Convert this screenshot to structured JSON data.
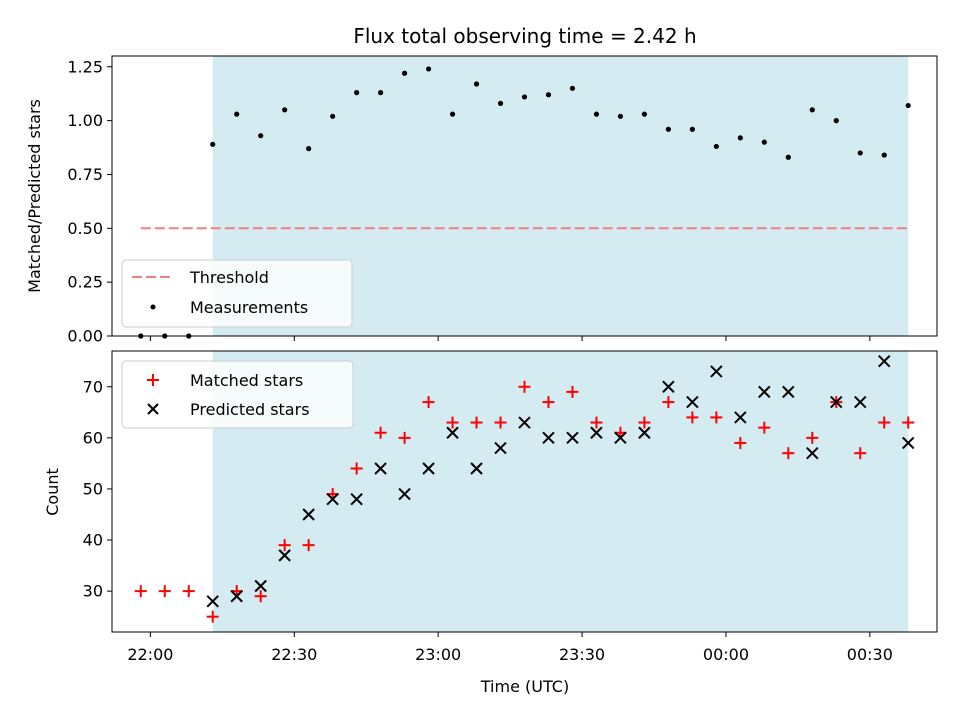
{
  "chart_data": [
    {
      "type": "scatter",
      "title": "Flux total observing time = 2.42 h",
      "ylabel": "Matched/Predicted stars",
      "xlim": [
        "21:52",
        "00:44"
      ],
      "ylim": [
        0,
        1.3
      ],
      "yticks": [
        "0.00",
        "0.25",
        "0.50",
        "0.75",
        "1.00",
        "1.25"
      ],
      "xticks": [
        "22:00",
        "22:30",
        "23:00",
        "23:30",
        "00:00",
        "00:30"
      ],
      "shaded_span": [
        "22:13",
        "00:38"
      ],
      "shaded_color": "#d3ebf1",
      "threshold": {
        "name": "Threshold",
        "value": 0.5,
        "x_start": "21:58",
        "x_end": "00:38",
        "color": "#f08080"
      },
      "legend": {
        "placement": "lower-left",
        "entries": [
          "Threshold",
          "Measurements"
        ]
      },
      "series": [
        {
          "name": "Measurements",
          "marker": "dot",
          "color": "#000000",
          "points": [
            [
              "21:58",
              0.0
            ],
            [
              "22:03",
              0.0
            ],
            [
              "22:08",
              0.0
            ],
            [
              "22:13",
              0.89
            ],
            [
              "22:18",
              1.03
            ],
            [
              "22:23",
              0.93
            ],
            [
              "22:28",
              1.05
            ],
            [
              "22:33",
              0.87
            ],
            [
              "22:38",
              1.02
            ],
            [
              "22:43",
              1.13
            ],
            [
              "22:48",
              1.13
            ],
            [
              "22:53",
              1.22
            ],
            [
              "22:58",
              1.24
            ],
            [
              "23:03",
              1.03
            ],
            [
              "23:08",
              1.17
            ],
            [
              "23:13",
              1.08
            ],
            [
              "23:18",
              1.11
            ],
            [
              "23:23",
              1.12
            ],
            [
              "23:28",
              1.15
            ],
            [
              "23:33",
              1.03
            ],
            [
              "23:38",
              1.02
            ],
            [
              "23:43",
              1.03
            ],
            [
              "23:48",
              0.96
            ],
            [
              "23:53",
              0.96
            ],
            [
              "23:58",
              0.88
            ],
            [
              "00:03",
              0.92
            ],
            [
              "00:08",
              0.9
            ],
            [
              "00:13",
              0.83
            ],
            [
              "00:18",
              1.05
            ],
            [
              "00:23",
              1.0
            ],
            [
              "00:28",
              0.85
            ],
            [
              "00:33",
              0.84
            ],
            [
              "00:38",
              1.07
            ]
          ]
        }
      ]
    },
    {
      "type": "scatter",
      "xlabel": "Time (UTC)",
      "ylabel": "Count",
      "xlim": [
        "21:52",
        "00:44"
      ],
      "ylim": [
        22,
        77
      ],
      "yticks": [
        "30",
        "40",
        "50",
        "60",
        "70"
      ],
      "xticks": [
        "22:00",
        "22:30",
        "23:00",
        "23:30",
        "00:00",
        "00:30"
      ],
      "shaded_span": [
        "22:13",
        "00:38"
      ],
      "shaded_color": "#d3ebf1",
      "legend": {
        "placement": "top-left",
        "entries": [
          "Matched stars",
          "Predicted stars"
        ]
      },
      "series": [
        {
          "name": "Matched stars",
          "marker": "plus",
          "color": "#ff0000",
          "points": [
            [
              "21:58",
              30
            ],
            [
              "22:03",
              30
            ],
            [
              "22:08",
              30
            ],
            [
              "22:13",
              25
            ],
            [
              "22:18",
              30
            ],
            [
              "22:23",
              29
            ],
            [
              "22:28",
              39
            ],
            [
              "22:33",
              39
            ],
            [
              "22:38",
              49
            ],
            [
              "22:43",
              54
            ],
            [
              "22:48",
              61
            ],
            [
              "22:53",
              60
            ],
            [
              "22:58",
              67
            ],
            [
              "23:03",
              63
            ],
            [
              "23:08",
              63
            ],
            [
              "23:13",
              63
            ],
            [
              "23:18",
              70
            ],
            [
              "23:23",
              67
            ],
            [
              "23:28",
              69
            ],
            [
              "23:33",
              63
            ],
            [
              "23:38",
              61
            ],
            [
              "23:43",
              63
            ],
            [
              "23:48",
              67
            ],
            [
              "23:53",
              64
            ],
            [
              "23:58",
              64
            ],
            [
              "00:03",
              59
            ],
            [
              "00:08",
              62
            ],
            [
              "00:13",
              57
            ],
            [
              "00:18",
              60
            ],
            [
              "00:23",
              67
            ],
            [
              "00:28",
              57
            ],
            [
              "00:33",
              63
            ],
            [
              "00:38",
              63
            ]
          ]
        },
        {
          "name": "Predicted stars",
          "marker": "x",
          "color": "#000000",
          "points": [
            [
              "22:13",
              28
            ],
            [
              "22:18",
              29
            ],
            [
              "22:23",
              31
            ],
            [
              "22:28",
              37
            ],
            [
              "22:33",
              45
            ],
            [
              "22:38",
              48
            ],
            [
              "22:43",
              48
            ],
            [
              "22:48",
              54
            ],
            [
              "22:53",
              49
            ],
            [
              "22:58",
              54
            ],
            [
              "23:03",
              61
            ],
            [
              "23:08",
              54
            ],
            [
              "23:13",
              58
            ],
            [
              "23:18",
              63
            ],
            [
              "23:23",
              60
            ],
            [
              "23:28",
              60
            ],
            [
              "23:33",
              61
            ],
            [
              "23:38",
              60
            ],
            [
              "23:43",
              61
            ],
            [
              "23:48",
              70
            ],
            [
              "23:53",
              67
            ],
            [
              "23:58",
              73
            ],
            [
              "00:03",
              64
            ],
            [
              "00:08",
              69
            ],
            [
              "00:13",
              69
            ],
            [
              "00:18",
              57
            ],
            [
              "00:23",
              67
            ],
            [
              "00:28",
              67
            ],
            [
              "00:33",
              75
            ],
            [
              "00:38",
              59
            ]
          ]
        }
      ]
    }
  ]
}
